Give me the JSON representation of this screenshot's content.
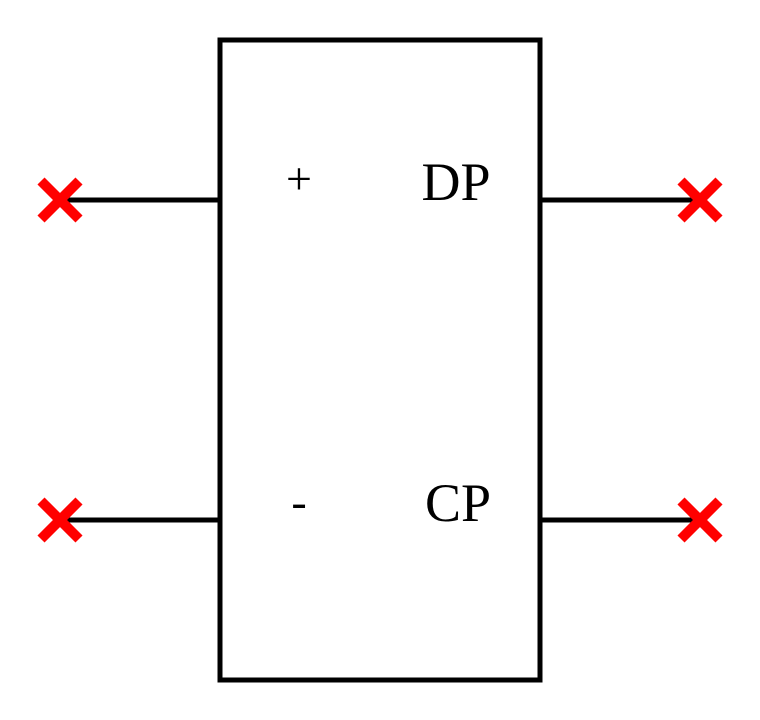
{
  "block": {
    "ports": {
      "left_top_label": "+",
      "left_bottom_label": "-",
      "right_top_label": "DP",
      "right_bottom_label": "CP"
    }
  },
  "colors": {
    "stroke": "#000000",
    "unconnected_marker": "#ff0000"
  },
  "icons": {
    "unconnected_marker": "x-mark-icon"
  }
}
